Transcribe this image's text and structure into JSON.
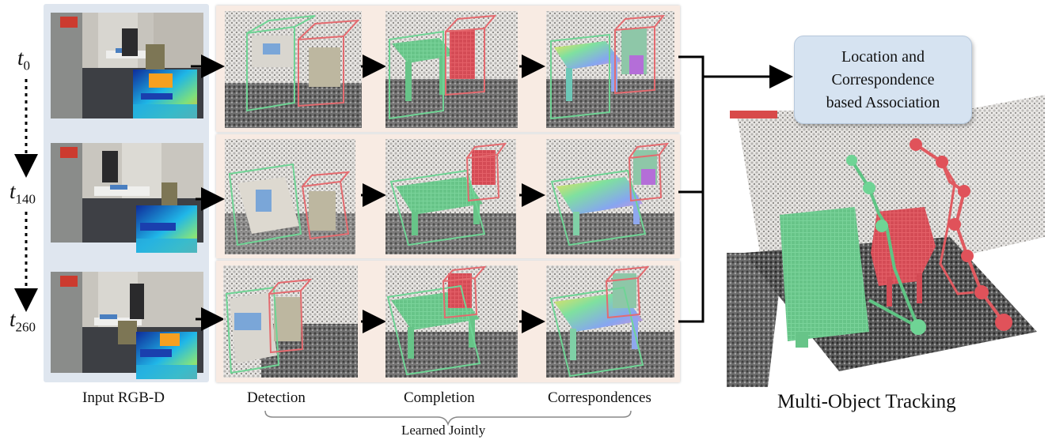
{
  "time_labels": [
    {
      "var": "t",
      "sub": "0"
    },
    {
      "var": "t",
      "sub": "140"
    },
    {
      "var": "t",
      "sub": "260"
    }
  ],
  "captions": {
    "input": "Input RGB-D",
    "detection": "Detection",
    "completion": "Completion",
    "correspondences": "Correspondences",
    "learned_jointly": "Learned Jointly"
  },
  "association_box": {
    "line1": "Location and",
    "line2": "Correspondence",
    "line3": "based Association"
  },
  "tracking_title": "Multi-Object Tracking",
  "colors": {
    "table_green": "#74cf95",
    "chair_red": "#e0525a",
    "panel_blue": "#dfe6ef",
    "row_peach": "#f8ebe3",
    "assoc_fill": "#d6e3f1"
  }
}
